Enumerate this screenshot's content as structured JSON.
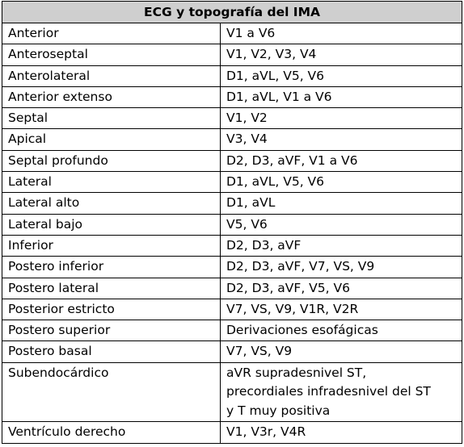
{
  "table": {
    "title": "ECG y topografía del IMA",
    "rows": [
      {
        "zone": "Anterior",
        "leads": "V1 a V6"
      },
      {
        "zone": "Anteroseptal",
        "leads": "V1, V2, V3, V4"
      },
      {
        "zone": "Anterolateral",
        "leads": "D1, aVL, V5, V6"
      },
      {
        "zone": "Anterior extenso",
        "leads": "D1, aVL, V1 a V6"
      },
      {
        "zone": "Septal",
        "leads": "V1, V2"
      },
      {
        "zone": "Apical",
        "leads": "V3, V4"
      },
      {
        "zone": "Septal profundo",
        "leads": "D2, D3, aVF, V1 a V6"
      },
      {
        "zone": "Lateral",
        "leads": "D1, aVL, V5, V6"
      },
      {
        "zone": "Lateral alto",
        "leads": "D1, aVL"
      },
      {
        "zone": "Lateral bajo",
        "leads": "V5, V6"
      },
      {
        "zone": "Inferior",
        "leads": "D2, D3, aVF"
      },
      {
        "zone": "Postero inferior",
        "leads": "D2, D3, aVF, V7, VS, V9"
      },
      {
        "zone": "Postero lateral",
        "leads": "D2, D3, aVF, V5, V6"
      },
      {
        "zone": "Posterior estricto",
        "leads": "V7, VS, V9, V1R, V2R"
      },
      {
        "zone": "Postero superior",
        "leads": "Derivaciones esofágicas"
      },
      {
        "zone": "Postero basal",
        "leads": "V7, VS, V9"
      }
    ],
    "subendocardic": {
      "zone": "Subendocárdico",
      "lines": [
        "aVR supradesnivel ST,",
        "precordiales infradesnivel del ST",
        "y T muy positiva"
      ]
    },
    "last_row": {
      "zone": "Ventrículo derecho",
      "leads": "V1, V3r, V4R"
    }
  }
}
